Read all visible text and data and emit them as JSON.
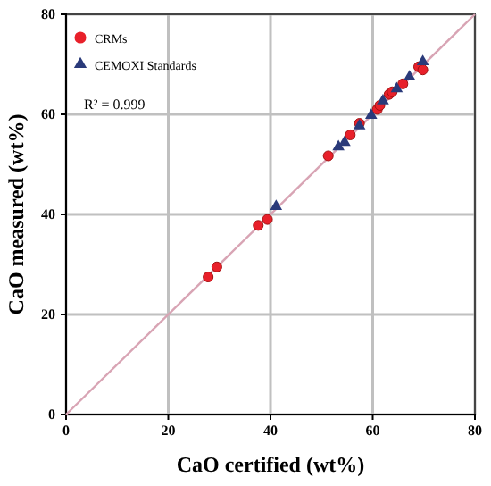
{
  "chart_data": {
    "type": "scatter",
    "xlabel": "CaO certified (wt%)",
    "ylabel": "CaO measured (wt%)",
    "xlim": [
      0,
      80
    ],
    "ylim": [
      0,
      80
    ],
    "xticks": [
      0,
      20,
      40,
      60,
      80
    ],
    "yticks": [
      0,
      20,
      40,
      60,
      80
    ],
    "grid": true,
    "legend": "top left",
    "annotations": [
      "R² = 0.999"
    ],
    "series": [
      {
        "type": "line",
        "color": "#d8a4b4",
        "x": [
          0,
          80
        ],
        "values": [
          0,
          80
        ],
        "marker": "none",
        "line_style": "solid"
      },
      {
        "name": "CRMs",
        "color": "#e8202a",
        "marker": "circle",
        "x": [
          27.8,
          29.5,
          37.6,
          39.4,
          51.3,
          55.6,
          57.4,
          60.9,
          61.4,
          63.2,
          63.8,
          65.9,
          69,
          69.8
        ],
        "values": [
          27.5,
          29.5,
          37.8,
          39,
          51.7,
          55.9,
          58.2,
          61,
          61.8,
          64,
          64.5,
          66.1,
          69.5,
          68.9
        ]
      },
      {
        "name": "CEMOXI Standards",
        "color": "#2a3a7a",
        "marker": "triangle",
        "x": [
          41.1,
          53.3,
          54.5,
          57.4,
          59.7,
          62,
          64.7,
          67.2,
          69.8
        ],
        "values": [
          41.6,
          53.5,
          54.4,
          57.7,
          59.8,
          62.7,
          65.1,
          67.5,
          70.5
        ]
      }
    ]
  }
}
